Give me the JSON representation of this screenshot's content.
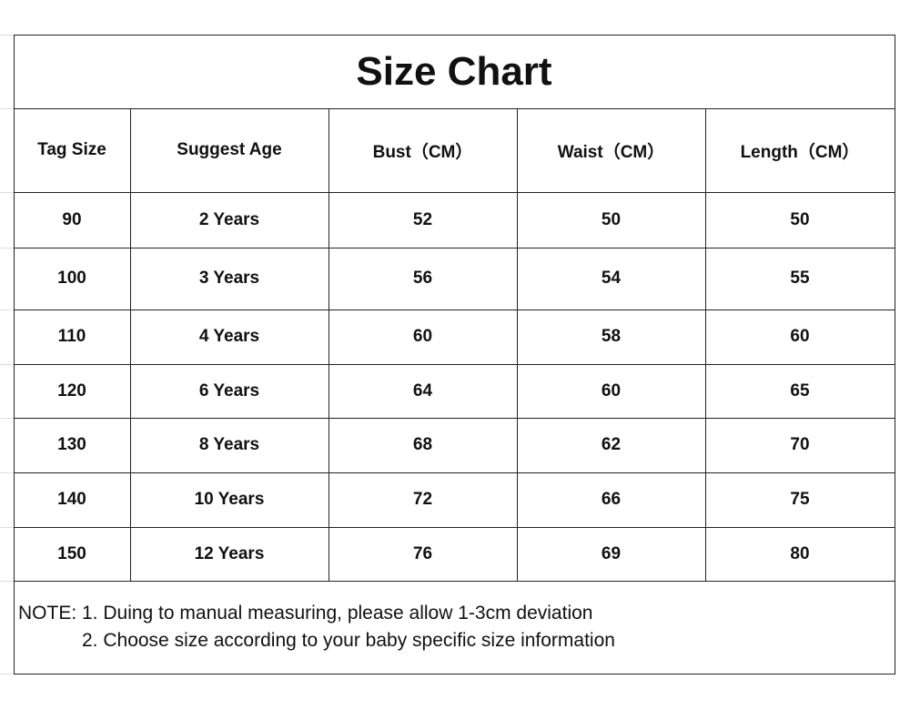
{
  "table": {
    "title": "Size Chart",
    "headers": [
      "Tag Size",
      "Suggest Age",
      "Bust（CM）",
      "Waist（CM）",
      "Length（CM）"
    ],
    "rows": [
      [
        90,
        "2 Years",
        52,
        50,
        50
      ],
      [
        100,
        "3 Years",
        56,
        54,
        55
      ],
      [
        110,
        "4 Years",
        60,
        58,
        60
      ],
      [
        120,
        "6 Years",
        64,
        60,
        65
      ],
      [
        130,
        "8 Years",
        68,
        62,
        70
      ],
      [
        140,
        "10 Years",
        72,
        66,
        75
      ],
      [
        150,
        "12 Years",
        76,
        69,
        80
      ]
    ],
    "notes": {
      "label": "NOTE:",
      "items": [
        "1. Duing to manual measuring, please allow 1-3cm deviation",
        "2. Choose size according to your baby specific size information"
      ]
    }
  }
}
